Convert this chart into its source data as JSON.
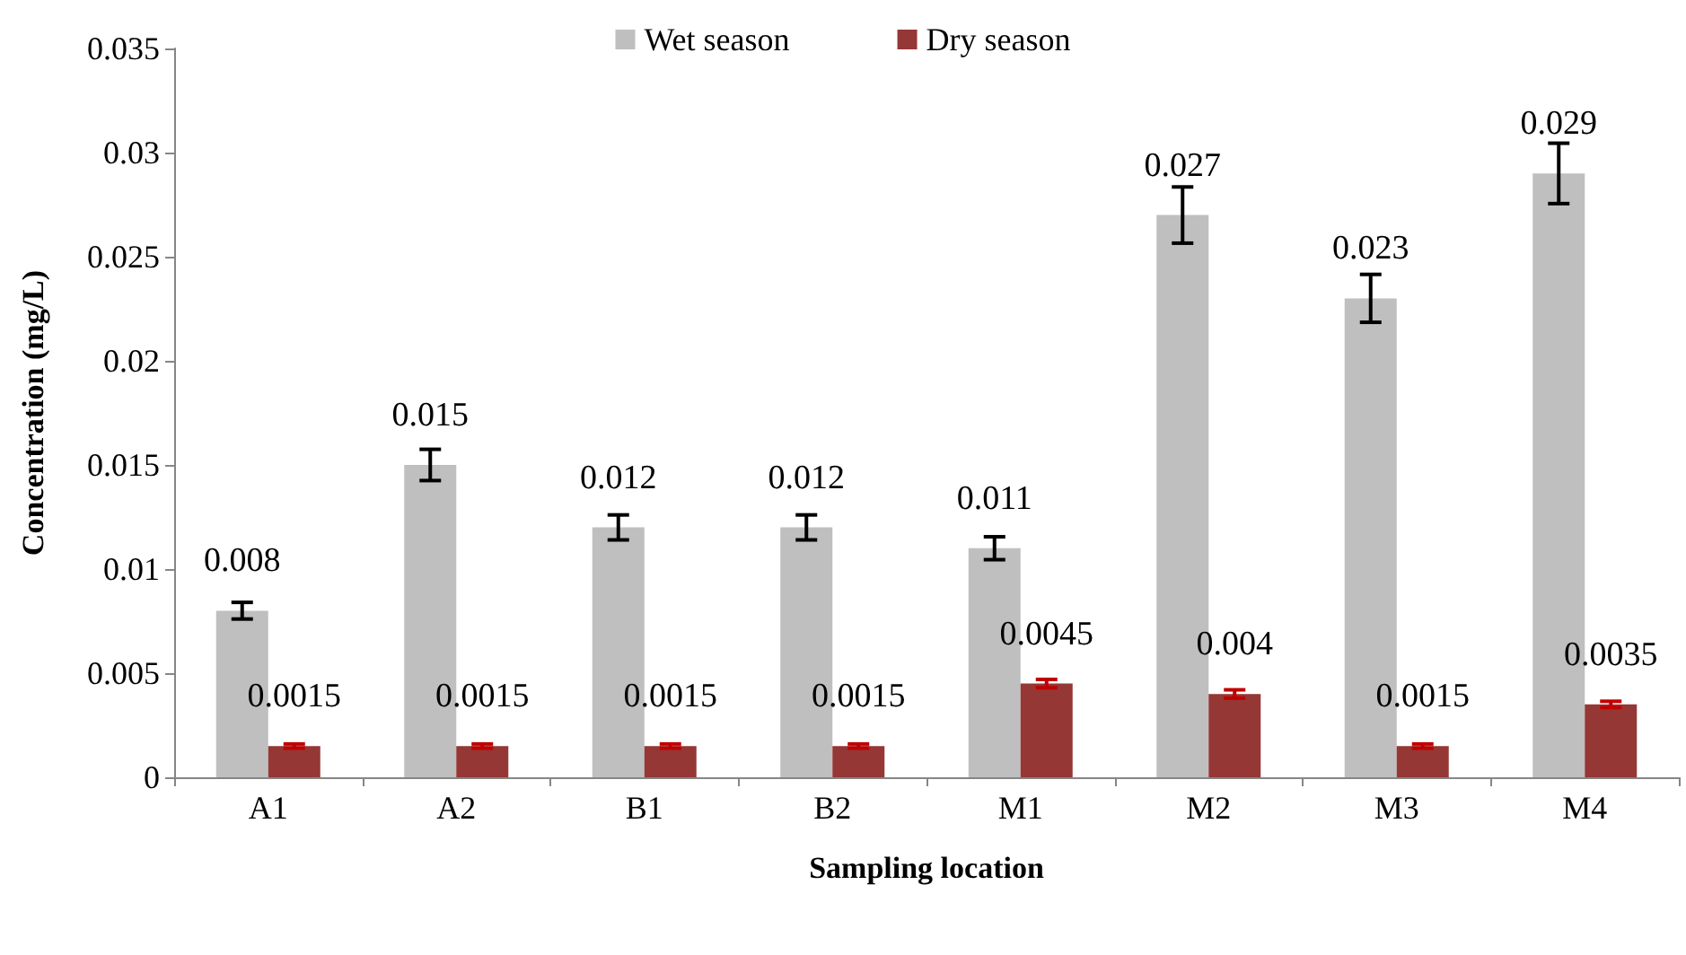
{
  "chart_data": {
    "type": "bar",
    "xlabel": "Sampling location",
    "ylabel": "Concentration (mg/L)",
    "categories": [
      "A1",
      "A2",
      "B1",
      "B2",
      "M1",
      "M2",
      "M3",
      "M4"
    ],
    "series": [
      {
        "name": "Wet season",
        "color": "#bfbfbf",
        "values": [
          0.008,
          0.015,
          0.012,
          0.012,
          0.011,
          0.027,
          0.023,
          0.029
        ],
        "errors": [
          0.0004,
          0.00075,
          0.0006,
          0.0006,
          0.00055,
          0.00135,
          0.00115,
          0.00145
        ]
      },
      {
        "name": "Dry season",
        "color": "#953735",
        "values": [
          0.0015,
          0.0015,
          0.0015,
          0.0015,
          0.0045,
          0.004,
          0.0015,
          0.0035
        ],
        "errors": [
          0.0001,
          0.0001,
          0.0001,
          0.0001,
          0.0002,
          0.0002,
          0.0001,
          0.00015
        ]
      }
    ],
    "ylim": [
      0,
      0.035
    ],
    "yticks": [
      0,
      0.005,
      0.01,
      0.015,
      0.02,
      0.025,
      0.03,
      0.035
    ],
    "data_labels": true,
    "grid": false,
    "legend": "top"
  }
}
